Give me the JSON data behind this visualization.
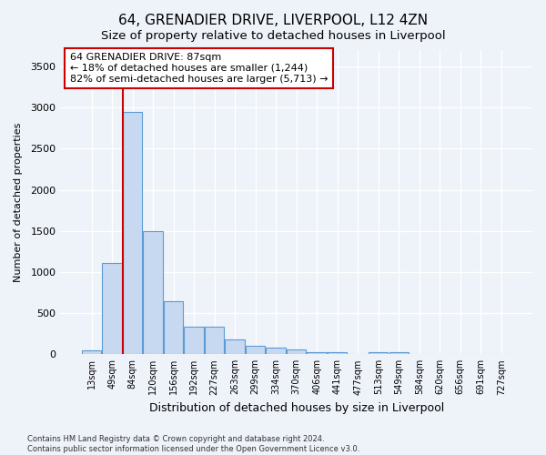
{
  "title1": "64, GRENADIER DRIVE, LIVERPOOL, L12 4ZN",
  "title2": "Size of property relative to detached houses in Liverpool",
  "xlabel": "Distribution of detached houses by size in Liverpool",
  "ylabel": "Number of detached properties",
  "footer1": "Contains HM Land Registry data © Crown copyright and database right 2024.",
  "footer2": "Contains public sector information licensed under the Open Government Licence v3.0.",
  "bar_labels": [
    "13sqm",
    "49sqm",
    "84sqm",
    "120sqm",
    "156sqm",
    "192sqm",
    "227sqm",
    "263sqm",
    "299sqm",
    "334sqm",
    "370sqm",
    "406sqm",
    "441sqm",
    "477sqm",
    "513sqm",
    "549sqm",
    "584sqm",
    "620sqm",
    "656sqm",
    "691sqm",
    "727sqm"
  ],
  "bar_values": [
    50,
    1110,
    2950,
    1500,
    650,
    330,
    330,
    175,
    100,
    80,
    55,
    30,
    25,
    5,
    25,
    20,
    5,
    3,
    3,
    2,
    1
  ],
  "bar_color": "#c6d9f0",
  "bar_edge_color": "#5b9bd5",
  "vline_color": "#cc0000",
  "annotation_text": "64 GRENADIER DRIVE: 87sqm\n← 18% of detached houses are smaller (1,244)\n82% of semi-detached houses are larger (5,713) →",
  "annotation_box_color": "#ffffff",
  "annotation_box_edge": "#cc0000",
  "ylim": [
    0,
    3700
  ],
  "yticks": [
    0,
    500,
    1000,
    1500,
    2000,
    2500,
    3000,
    3500
  ],
  "background_color": "#eef2f9",
  "grid_color": "#ffffff",
  "title1_fontsize": 11,
  "title2_fontsize": 10
}
